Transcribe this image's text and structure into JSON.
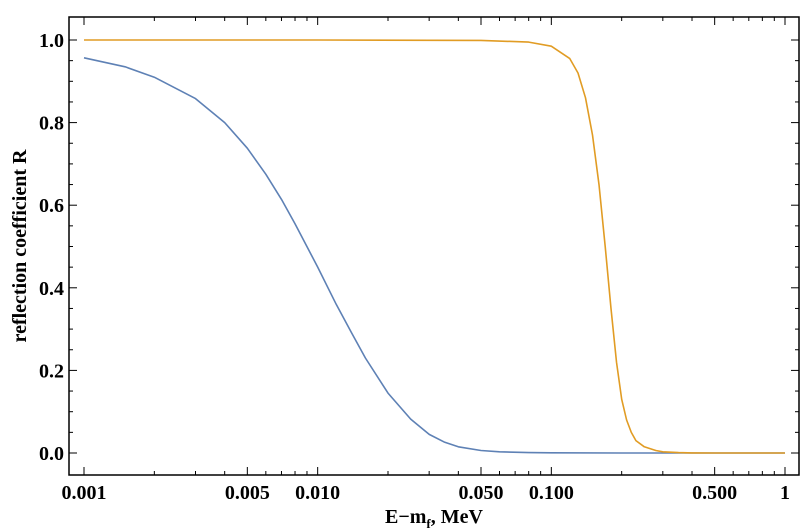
{
  "chart_data": {
    "type": "line",
    "xlabel": {
      "main": "E−m",
      "sub": "f",
      "rest": ", MeV"
    },
    "ylabel": "reflection coefficient R",
    "xscale": "log",
    "xlim": [
      0.001,
      1
    ],
    "ylim": [
      -0.05,
      1.05
    ],
    "x_ticks": [
      {
        "value": 0.001,
        "label": "0.001"
      },
      {
        "value": 0.005,
        "label": "0.005"
      },
      {
        "value": 0.01,
        "label": "0.010"
      },
      {
        "value": 0.05,
        "label": "0.050"
      },
      {
        "value": 0.1,
        "label": "0.100"
      },
      {
        "value": 0.5,
        "label": "0.500"
      },
      {
        "value": 1,
        "label": "1"
      }
    ],
    "y_ticks": [
      {
        "value": 0,
        "label": "0.0"
      },
      {
        "value": 0.2,
        "label": "0.2"
      },
      {
        "value": 0.4,
        "label": "0.4"
      },
      {
        "value": 0.6,
        "label": "0.6"
      },
      {
        "value": 0.8,
        "label": "0.8"
      },
      {
        "value": 1.0,
        "label": "1.0"
      }
    ],
    "grid": false,
    "series": [
      {
        "color": "#5e81b5",
        "x": [
          0.001,
          0.0015,
          0.002,
          0.003,
          0.004,
          0.005,
          0.006,
          0.007,
          0.008,
          0.01,
          0.012,
          0.014,
          0.016,
          0.02,
          0.025,
          0.03,
          0.035,
          0.04,
          0.05,
          0.06,
          0.08,
          0.1,
          0.2,
          0.5,
          1
        ],
        "y": [
          0.957,
          0.935,
          0.91,
          0.858,
          0.8,
          0.738,
          0.675,
          0.614,
          0.555,
          0.45,
          0.36,
          0.29,
          0.23,
          0.145,
          0.082,
          0.045,
          0.026,
          0.015,
          0.006,
          0.003,
          0.001,
          0.0005,
          0,
          0,
          0
        ]
      },
      {
        "color": "#e19c24",
        "x": [
          0.001,
          0.01,
          0.05,
          0.08,
          0.1,
          0.12,
          0.13,
          0.14,
          0.15,
          0.16,
          0.17,
          0.18,
          0.19,
          0.2,
          0.21,
          0.22,
          0.23,
          0.25,
          0.28,
          0.3,
          0.35,
          0.4,
          0.5,
          1
        ],
        "y": [
          1.0,
          1.0,
          0.999,
          0.995,
          0.985,
          0.955,
          0.92,
          0.86,
          0.77,
          0.65,
          0.5,
          0.35,
          0.22,
          0.13,
          0.08,
          0.05,
          0.03,
          0.015,
          0.006,
          0.003,
          0.001,
          0.0003,
          0,
          0
        ]
      }
    ]
  }
}
